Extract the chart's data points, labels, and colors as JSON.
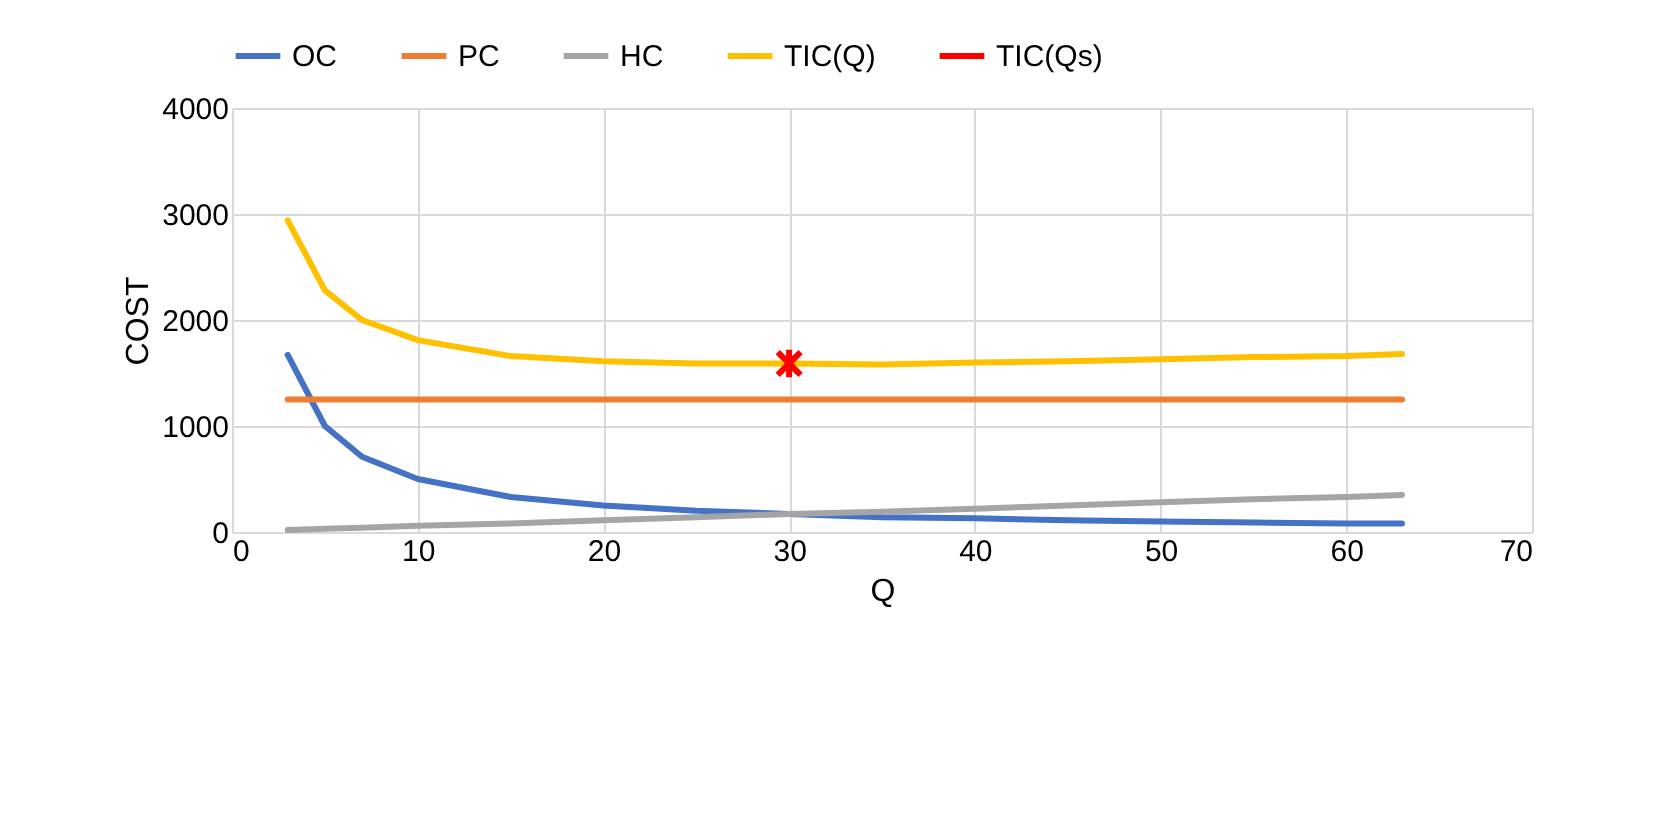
{
  "chart_data": {
    "type": "line",
    "xlabel": "Q",
    "ylabel": "COST",
    "x": [
      3,
      5,
      7,
      10,
      15,
      20,
      25,
      30,
      35,
      40,
      45,
      50,
      55,
      60,
      63
    ],
    "series": [
      {
        "name": "OC",
        "color": "#4472c4",
        "values": [
          1670,
          1000,
          710,
          500,
          330,
          250,
          200,
          170,
          140,
          130,
          110,
          100,
          90,
          80,
          80
        ]
      },
      {
        "name": "PC",
        "color": "#ed7d31",
        "values": [
          1250,
          1250,
          1250,
          1250,
          1250,
          1250,
          1250,
          1250,
          1250,
          1250,
          1250,
          1250,
          1250,
          1250,
          1250
        ]
      },
      {
        "name": "HC",
        "color": "#a5a5a5",
        "values": [
          20,
          30,
          40,
          60,
          80,
          110,
          140,
          170,
          190,
          220,
          250,
          280,
          310,
          330,
          350
        ]
      },
      {
        "name": "TIC(Q)",
        "color": "#ffc000",
        "values": [
          2940,
          2280,
          2000,
          1810,
          1660,
          1610,
          1590,
          1590,
          1580,
          1600,
          1610,
          1630,
          1650,
          1660,
          1680
        ]
      },
      {
        "name": "TIC(Qs)",
        "color": "#ff0000",
        "type": "scatter",
        "marker": "cross",
        "x": [
          30
        ],
        "values": [
          1590
        ]
      }
    ],
    "xlim": [
      0,
      70
    ],
    "xticks": [
      0,
      10,
      20,
      30,
      40,
      50,
      60,
      70
    ],
    "ylim": [
      0,
      4000
    ],
    "yticks": [
      0,
      1000,
      2000,
      3000,
      4000
    ],
    "grid": true,
    "legend": "top",
    "line_style": "solid"
  }
}
